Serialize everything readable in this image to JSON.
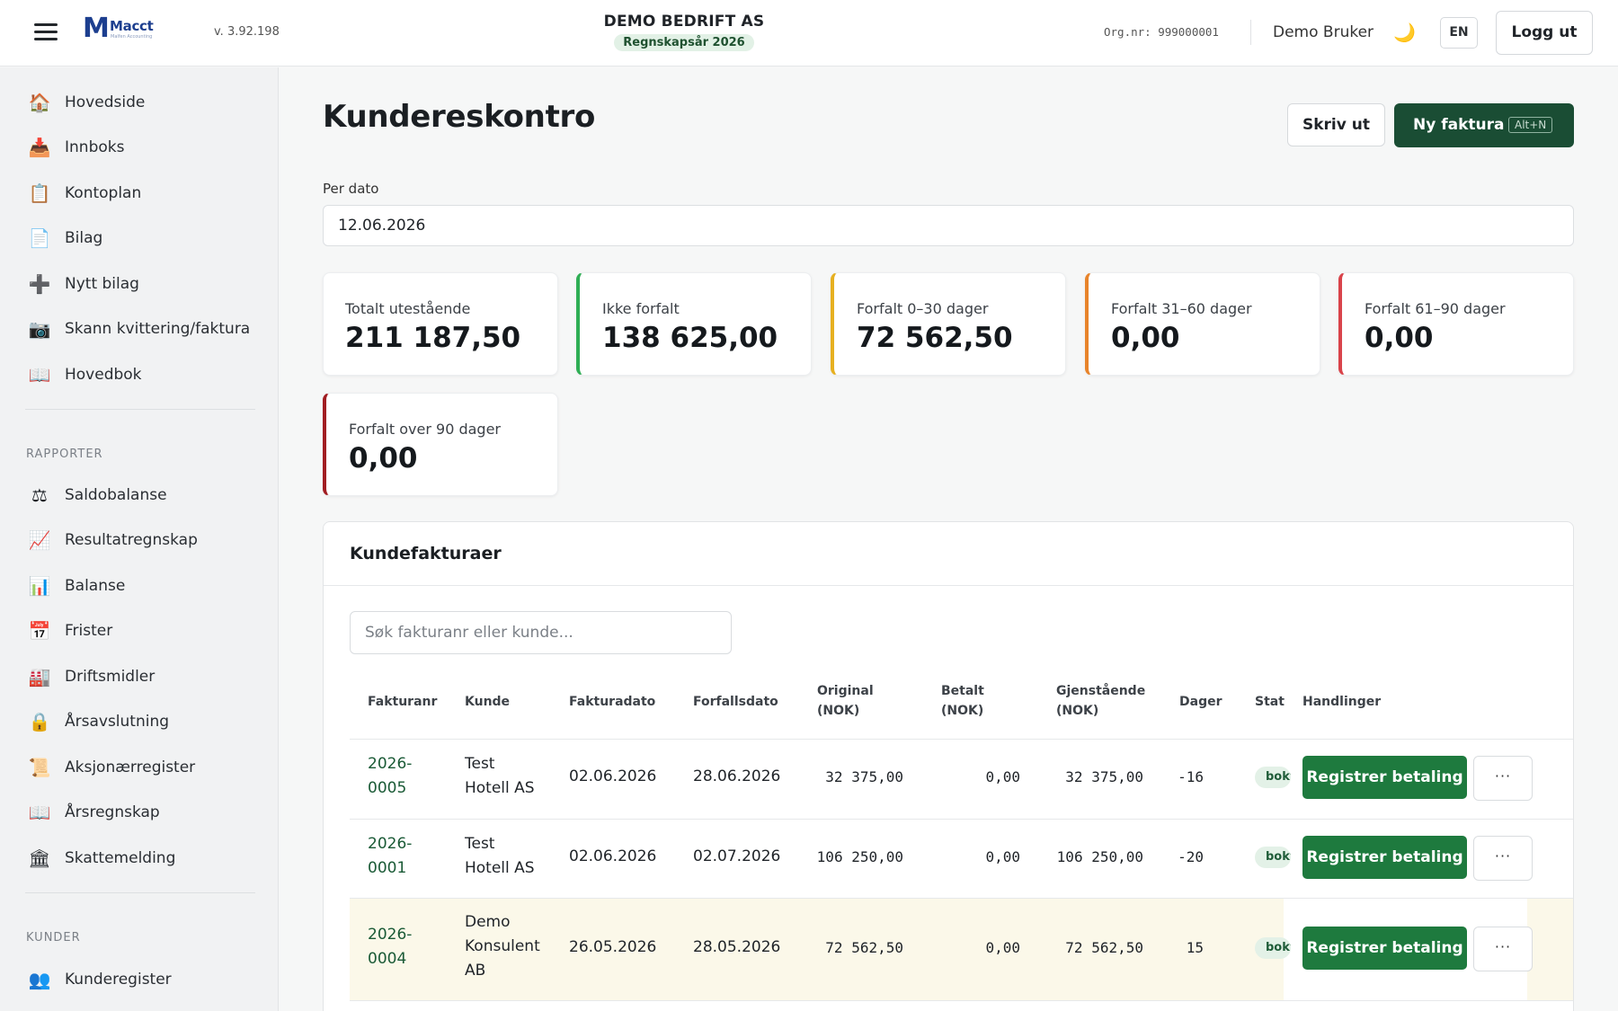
{
  "topbar": {
    "version": "v. 3.92.198",
    "company_name": "DEMO BEDRIFT AS",
    "fiscal_year": "Regnskapsår 2026",
    "org_nr": "Org.nr: 999000001",
    "user": "Demo Bruker",
    "language": "EN",
    "logout": "Logg ut",
    "logo": {
      "mark": "M",
      "name": "Macct",
      "tagline": "Malfen Accounting"
    }
  },
  "sidebar": {
    "items": [
      {
        "label": "Hovedside",
        "icon": "🏠"
      },
      {
        "label": "Innboks",
        "icon": "📥"
      },
      {
        "label": "Kontoplan",
        "icon": "📋"
      },
      {
        "label": "Bilag",
        "icon": "📄"
      },
      {
        "label": "Nytt bilag",
        "icon": "➕"
      },
      {
        "label": "Skann kvittering/faktura",
        "icon": "📷"
      },
      {
        "label": "Hovedbok",
        "icon": "📖"
      }
    ],
    "reports_title": "RAPPORTER",
    "reports": [
      {
        "label": "Saldobalanse",
        "icon": "⚖"
      },
      {
        "label": "Resultatregnskap",
        "icon": "📈"
      },
      {
        "label": "Balanse",
        "icon": "📊"
      },
      {
        "label": "Frister",
        "icon": "📅"
      },
      {
        "label": "Driftsmidler",
        "icon": "🏭"
      },
      {
        "label": "Årsavslutning",
        "icon": "🔒"
      },
      {
        "label": "Aksjonærregister",
        "icon": "📜"
      },
      {
        "label": "Årsregnskap",
        "icon": "📖"
      },
      {
        "label": "Skattemelding",
        "icon": "🏛"
      }
    ],
    "customers_title": "KUNDER",
    "customers": [
      {
        "label": "Kunderegister",
        "icon": "👥"
      }
    ]
  },
  "main": {
    "title": "Kundereskontro",
    "print_label": "Skriv ut",
    "new_invoice_label": "Ny faktura",
    "new_invoice_shortcut": "Alt+N",
    "date_label": "Per dato",
    "date_value": "12.06.2026",
    "cards": [
      {
        "label": "Totalt utestående",
        "value": "211 187,50"
      },
      {
        "label": "Ikke forfalt",
        "value": "138 625,00",
        "accent": "#2fae55"
      },
      {
        "label": "Forfalt 0–30 dager",
        "value": "72 562,50",
        "accent": "#e6b020"
      },
      {
        "label": "Forfalt 31–60 dager",
        "value": "0,00",
        "accent": "#e8842b"
      },
      {
        "label": "Forfalt 61–90 dager",
        "value": "0,00",
        "accent": "#d9434a"
      },
      {
        "label": "Forfalt over 90 dager",
        "value": "0,00",
        "accent": "#a11d22"
      }
    ]
  },
  "invoices": {
    "title": "Kundefakturaer",
    "search_placeholder": "Søk fakturanr eller kunde...",
    "headers": {
      "nr": "Fakturanr",
      "customer": "Kunde",
      "invoice_date": "Fakturadato",
      "due_date": "Forfallsdato",
      "original_1": "Original",
      "original_2": "(NOK)",
      "paid_1": "Betalt",
      "paid_2": "(NOK)",
      "remaining_1": "Gjenstående",
      "remaining_2": "(NOK)",
      "days": "Dager",
      "status": "Status",
      "actions": "Handlinger"
    },
    "rows": [
      {
        "nr_1": "2026-",
        "nr_2": "0005",
        "customer_1": "Test",
        "customer_2": "Hotell AS",
        "customer_3": "",
        "invoice_date": "02.06.2026",
        "due_date": "28.06.2026",
        "original": "32 375,00",
        "paid": "0,00",
        "remaining": "32 375,00",
        "days": "-16",
        "status": "bokført",
        "pay_label": "Registrer betaling",
        "more": "···"
      },
      {
        "nr_1": "2026-",
        "nr_2": "0001",
        "customer_1": "Test",
        "customer_2": "Hotell AS",
        "customer_3": "",
        "invoice_date": "02.06.2026",
        "due_date": "02.07.2026",
        "original": "106 250,00",
        "paid": "0,00",
        "remaining": "106 250,00",
        "days": "-20",
        "status": "bokført",
        "pay_label": "Registrer betaling",
        "more": "···"
      },
      {
        "nr_1": "2026-",
        "nr_2": "0004",
        "customer_1": "Demo",
        "customer_2": "Konsulent",
        "customer_3": "AB",
        "invoice_date": "26.05.2026",
        "due_date": "28.05.2026",
        "original": "72 562,50",
        "paid": "0,00",
        "remaining": "72 562,50",
        "days": "15",
        "status": "bokført",
        "pay_label": "Registrer betaling",
        "more": "···"
      }
    ]
  }
}
